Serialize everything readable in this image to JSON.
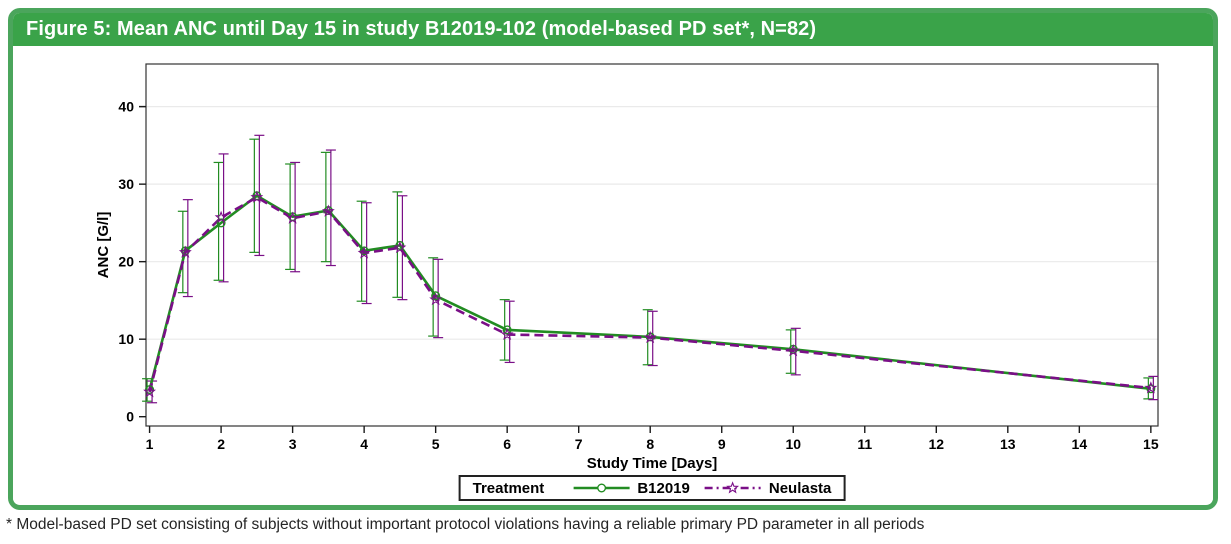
{
  "figure": {
    "title": "Figure 5: Mean ANC until Day 15 in study B12019-102 (model-based PD set*, N=82)",
    "footnote": "* Model-based PD set consisting of subjects without important protocol violations having a reliable primary PD parameter in all periods"
  },
  "colors": {
    "header_green": "#3aa349",
    "border_green": "#4ba55c",
    "b12019_green": "#228c22",
    "neulasta_purple": "#7a0f87",
    "grid_gray": "#eaeaea",
    "axis_black": "#1a1a1a"
  },
  "legend": {
    "title": "Treatment",
    "items": [
      {
        "label": "B12019"
      },
      {
        "label": "Neulasta"
      }
    ]
  },
  "chart_data": {
    "type": "line",
    "title": "Figure 5: Mean ANC until Day 15 in study B12019-102 (model-based PD set*, N=82)",
    "xlabel": "Study Time [Days]",
    "ylabel": "ANC [G/l]",
    "xlim": [
      0.95,
      15.1
    ],
    "ylim": [
      -1.2,
      45.5
    ],
    "xticks": [
      1,
      2,
      3,
      4,
      5,
      6,
      7,
      8,
      9,
      10,
      11,
      12,
      13,
      14,
      15
    ],
    "yticks": [
      0,
      10,
      20,
      30,
      40
    ],
    "grid": "horizontal-only",
    "legend_position": "bottom",
    "error_bars": true,
    "x": [
      1,
      1.5,
      2,
      2.5,
      3,
      3.5,
      4,
      4.5,
      5,
      6,
      8,
      10,
      15
    ],
    "series": [
      {
        "name": "B12019",
        "color": "#228c22",
        "line": "solid",
        "marker": "circle",
        "values": [
          3.5,
          21.4,
          25.0,
          28.5,
          25.8,
          26.6,
          21.4,
          22.1,
          15.6,
          11.2,
          10.3,
          8.7,
          3.6
        ],
        "err_low": [
          2.0,
          16.0,
          17.6,
          21.2,
          19.0,
          20.0,
          14.9,
          15.4,
          10.4,
          7.3,
          6.7,
          5.6,
          2.3
        ],
        "err_high": [
          4.9,
          26.5,
          32.8,
          35.8,
          32.6,
          34.1,
          27.8,
          29.0,
          20.5,
          15.1,
          13.8,
          11.2,
          5.0
        ]
      },
      {
        "name": "Neulasta",
        "color": "#7a0f87",
        "line": "dashed",
        "marker": "star",
        "values": [
          3.2,
          21.2,
          25.7,
          28.3,
          25.6,
          26.5,
          21.1,
          21.8,
          15.1,
          10.6,
          10.2,
          8.5,
          3.7
        ],
        "err_low": [
          1.8,
          15.5,
          17.4,
          20.8,
          18.7,
          19.5,
          14.6,
          15.1,
          10.2,
          7.0,
          6.6,
          5.4,
          2.2
        ],
        "err_high": [
          4.6,
          28.0,
          33.9,
          36.3,
          32.8,
          34.4,
          27.6,
          28.5,
          20.3,
          14.9,
          13.6,
          11.4,
          5.2
        ]
      }
    ]
  }
}
